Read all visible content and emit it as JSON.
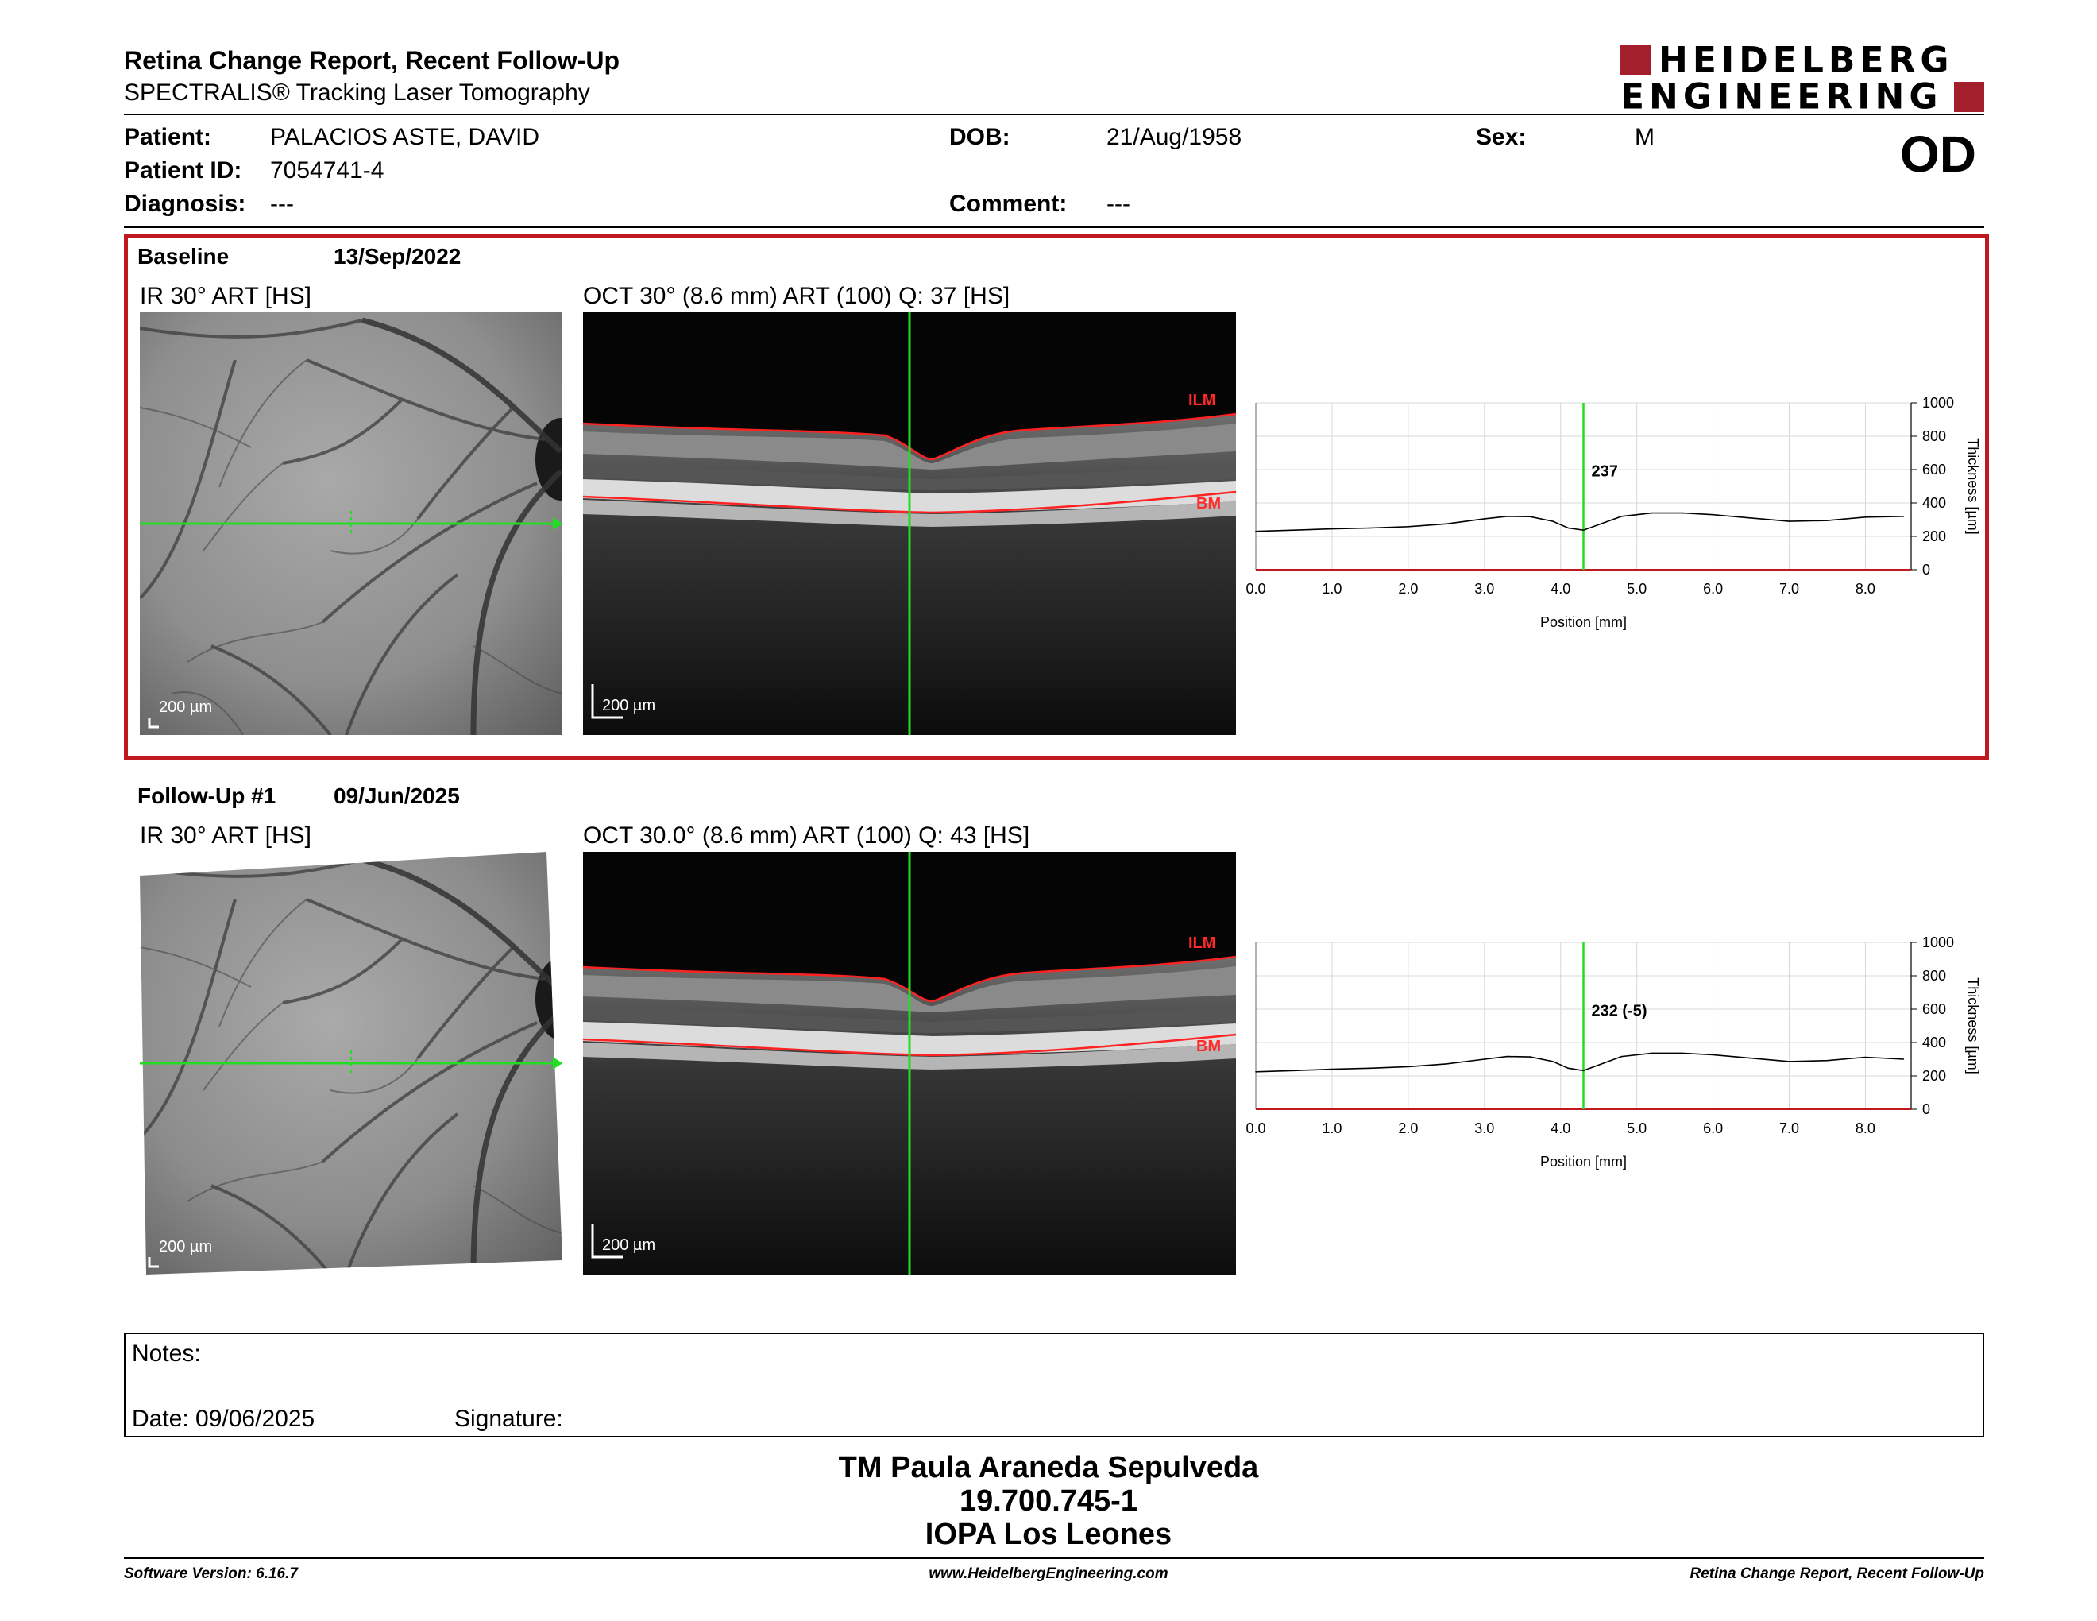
{
  "header": {
    "title": "Retina Change Report, Recent Follow-Up",
    "subtitle": "SPECTRALIS® Tracking Laser Tomography",
    "logo_line1": "HEIDELBERG",
    "logo_line2": "ENGINEERING",
    "eye": "OD"
  },
  "patient": {
    "patient_label": "Patient:",
    "patient_value": "PALACIOS ASTE, DAVID",
    "id_label": "Patient ID:",
    "id_value": "7054741-4",
    "diagnosis_label": "Diagnosis:",
    "diagnosis_value": "---",
    "dob_label": "DOB:",
    "dob_value": "21/Aug/1958",
    "comment_label": "Comment:",
    "comment_value": "---",
    "sex_label": "Sex:",
    "sex_value": "M"
  },
  "exams": [
    {
      "label": "Baseline",
      "date": "13/Sep/2022",
      "ir_title": "IR 30° ART [HS]",
      "oct_title": "OCT 30° (8.6 mm) ART (100) Q: 37 [HS]",
      "scale_ir": "200 µm",
      "scale_oct": "200 µm",
      "ilm": "ILM",
      "bm": "BM",
      "value_label": "237"
    },
    {
      "label": "Follow-Up #1",
      "date": "09/Jun/2025",
      "ir_title": "IR 30° ART [HS]",
      "oct_title": "OCT 30.0° (8.6 mm) ART (100) Q: 43 [HS]",
      "scale_ir": "200 µm",
      "scale_oct": "200 µm",
      "ilm": "ILM",
      "bm": "BM",
      "value_label": "232 (-5)"
    }
  ],
  "chart_data": [
    {
      "type": "line",
      "xlabel": "Position [mm]",
      "ylabel": "Thickness [µm]",
      "xlim": [
        0,
        8.6
      ],
      "ylim": [
        0,
        1000
      ],
      "x_ticks": [
        "0.0",
        "1.0",
        "2.0",
        "3.0",
        "4.0",
        "5.0",
        "6.0",
        "7.0",
        "8.0"
      ],
      "y_ticks": [
        "0",
        "200",
        "400",
        "600",
        "800",
        "1000"
      ],
      "marker_x": 4.3,
      "marker_label": "237",
      "series": [
        {
          "x": [
            0,
            0.5,
            1.0,
            1.5,
            2.0,
            2.5,
            3.0,
            3.3,
            3.6,
            3.9,
            4.1,
            4.3,
            4.5,
            4.8,
            5.2,
            5.6,
            6.0,
            6.5,
            7.0,
            7.5,
            8.0,
            8.5
          ],
          "values": [
            230,
            237,
            245,
            250,
            258,
            275,
            305,
            320,
            318,
            290,
            250,
            237,
            270,
            320,
            340,
            340,
            330,
            310,
            290,
            295,
            315,
            320
          ]
        }
      ],
      "grid": true
    },
    {
      "type": "line",
      "xlabel": "Position [mm]",
      "ylabel": "Thickness [µm]",
      "xlim": [
        0,
        8.6
      ],
      "ylim": [
        0,
        1000
      ],
      "x_ticks": [
        "0.0",
        "1.0",
        "2.0",
        "3.0",
        "4.0",
        "5.0",
        "6.0",
        "7.0",
        "8.0"
      ],
      "y_ticks": [
        "0",
        "200",
        "400",
        "600",
        "800",
        "1000"
      ],
      "marker_x": 4.3,
      "marker_label": "232 (-5)",
      "series": [
        {
          "x": [
            0,
            0.5,
            1.0,
            1.5,
            2.0,
            2.5,
            3.0,
            3.3,
            3.6,
            3.9,
            4.1,
            4.3,
            4.5,
            4.8,
            5.2,
            5.6,
            6.0,
            6.5,
            7.0,
            7.5,
            8.0,
            8.5
          ],
          "values": [
            225,
            232,
            240,
            246,
            255,
            272,
            300,
            316,
            314,
            286,
            246,
            232,
            265,
            316,
            336,
            336,
            326,
            306,
            286,
            292,
            312,
            300
          ]
        }
      ],
      "grid": true
    }
  ],
  "notes": {
    "label": "Notes:",
    "date_label": "Date: 09/06/2025",
    "signature_label": "Signature:"
  },
  "stamp": {
    "line1": "TM Paula Araneda Sepulveda",
    "line2": "19.700.745-1",
    "line3": "IOPA Los Leones"
  },
  "footer": {
    "software": "Software Version: 6.16.7",
    "website": "www.HeidelbergEngineering.com",
    "report": "Retina Change Report, Recent Follow-Up"
  },
  "colors": {
    "brand_red": "#a31f2c",
    "marker_green": "#22dd22",
    "layer_red": "#ff2222"
  }
}
